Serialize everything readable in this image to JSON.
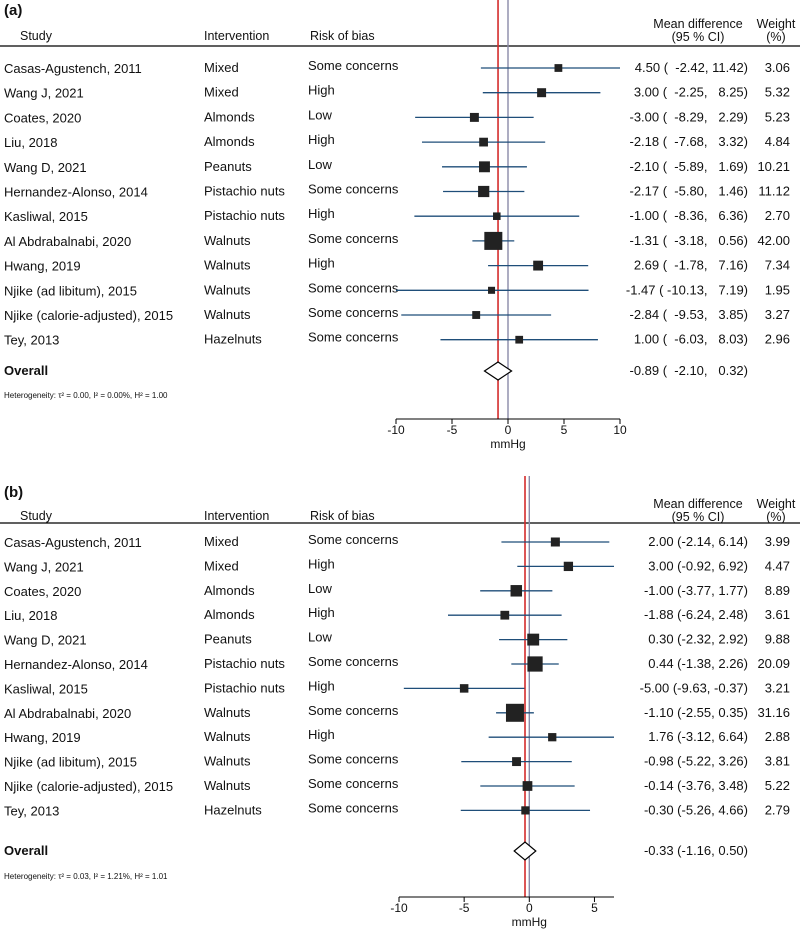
{
  "colors": {
    "ci_line": "#1f4e79",
    "marker": "#222222",
    "null_line": "#8a8aa8",
    "overall_line": "#d42b2b"
  },
  "headers": {
    "study": "Study",
    "intervention": "Intervention",
    "rob": "Risk of bias",
    "md1": "Mean difference",
    "md2": "(95 % CI)",
    "w1": "Weight",
    "w2": "(%)"
  },
  "chart_data": [
    {
      "panel": "(a)",
      "type": "forest",
      "xlabel": "mmHg",
      "xlim": [
        -10,
        10
      ],
      "xticks": [
        -10,
        -5,
        0,
        5,
        10
      ],
      "studies": [
        {
          "name": "Casas-Agustench, 2011",
          "intervention": "Mixed",
          "rob": "Some concerns",
          "md": 4.5,
          "lo": -2.42,
          "hi": 11.42,
          "weight": 3.06,
          "ci_text": "4.50 (  -2.42, 11.42)",
          "weight_text": "3.06"
        },
        {
          "name": "Wang J, 2021",
          "intervention": "Mixed",
          "rob": "High",
          "md": 3.0,
          "lo": -2.25,
          "hi": 8.25,
          "weight": 5.32,
          "ci_text": "3.00 (  -2.25,   8.25)",
          "weight_text": "5.32"
        },
        {
          "name": "Coates, 2020",
          "intervention": "Almonds",
          "rob": "Low",
          "md": -3.0,
          "lo": -8.29,
          "hi": 2.29,
          "weight": 5.23,
          "ci_text": "-3.00 (  -8.29,   2.29)",
          "weight_text": "5.23"
        },
        {
          "name": "Liu, 2018",
          "intervention": "Almonds",
          "rob": "High",
          "md": -2.18,
          "lo": -7.68,
          "hi": 3.32,
          "weight": 4.84,
          "ci_text": "-2.18 (  -7.68,   3.32)",
          "weight_text": "4.84"
        },
        {
          "name": "Wang D, 2021",
          "intervention": "Peanuts",
          "rob": "Low",
          "md": -2.1,
          "lo": -5.89,
          "hi": 1.69,
          "weight": 10.21,
          "ci_text": "-2.10 (  -5.89,   1.69)",
          "weight_text": "10.21"
        },
        {
          "name": "Hernandez-Alonso, 2014",
          "intervention": "Pistachio nuts",
          "rob": "Some concerns",
          "md": -2.17,
          "lo": -5.8,
          "hi": 1.46,
          "weight": 11.12,
          "ci_text": "-2.17 (  -5.80,   1.46)",
          "weight_text": "11.12"
        },
        {
          "name": "Kasliwal, 2015",
          "intervention": "Pistachio nuts",
          "rob": "High",
          "md": -1.0,
          "lo": -8.36,
          "hi": 6.36,
          "weight": 2.7,
          "ci_text": "-1.00 (  -8.36,   6.36)",
          "weight_text": "2.70"
        },
        {
          "name": "Al Abdrabalnabi, 2020",
          "intervention": "Walnuts",
          "rob": "Some concerns",
          "md": -1.31,
          "lo": -3.18,
          "hi": 0.56,
          "weight": 42.0,
          "ci_text": "-1.31 (  -3.18,   0.56)",
          "weight_text": "42.00"
        },
        {
          "name": "Hwang, 2019",
          "intervention": "Walnuts",
          "rob": "High",
          "md": 2.69,
          "lo": -1.78,
          "hi": 7.16,
          "weight": 7.34,
          "ci_text": "2.69 (  -1.78,   7.16)",
          "weight_text": "7.34"
        },
        {
          "name": "Njike (ad libitum), 2015",
          "intervention": "Walnuts",
          "rob": "Some concerns",
          "md": -1.47,
          "lo": -10.13,
          "hi": 7.19,
          "weight": 1.95,
          "ci_text": "-1.47 ( -10.13,   7.19)",
          "weight_text": "1.95"
        },
        {
          "name": "Njike (calorie-adjusted), 2015",
          "intervention": "Walnuts",
          "rob": "Some concerns",
          "md": -2.84,
          "lo": -9.53,
          "hi": 3.85,
          "weight": 3.27,
          "ci_text": "-2.84 (  -9.53,   3.85)",
          "weight_text": "3.27"
        },
        {
          "name": "Tey, 2013",
          "intervention": "Hazelnuts",
          "rob": "Some concerns",
          "md": 1.0,
          "lo": -6.03,
          "hi": 8.03,
          "weight": 2.96,
          "ci_text": "1.00 (  -6.03,   8.03)",
          "weight_text": "2.96"
        }
      ],
      "overall": {
        "label": "Overall",
        "md": -0.89,
        "lo": -2.1,
        "hi": 0.32,
        "ci_text": "-0.89 (  -2.10,   0.32)"
      },
      "heterogeneity": "Heterogeneity: τ² = 0.00, I² = 0.00%, H² = 1.00"
    },
    {
      "panel": "(b)",
      "type": "forest",
      "xlabel": "mmHg",
      "xlim": [
        -10,
        6.5
      ],
      "xticks": [
        -10,
        -5,
        0,
        5
      ],
      "studies": [
        {
          "name": "Casas-Agustench, 2011",
          "intervention": "Mixed",
          "rob": "Some concerns",
          "md": 2.0,
          "lo": -2.14,
          "hi": 6.14,
          "weight": 3.99,
          "ci_text": "2.00 (-2.14, 6.14)",
          "weight_text": "3.99"
        },
        {
          "name": "Wang J, 2021",
          "intervention": "Mixed",
          "rob": "High",
          "md": 3.0,
          "lo": -0.92,
          "hi": 6.92,
          "weight": 4.47,
          "ci_text": "3.00 (-0.92, 6.92)",
          "weight_text": "4.47"
        },
        {
          "name": "Coates, 2020",
          "intervention": "Almonds",
          "rob": "Low",
          "md": -1.0,
          "lo": -3.77,
          "hi": 1.77,
          "weight": 8.89,
          "ci_text": "-1.00 (-3.77, 1.77)",
          "weight_text": "8.89"
        },
        {
          "name": "Liu, 2018",
          "intervention": "Almonds",
          "rob": "High",
          "md": -1.88,
          "lo": -6.24,
          "hi": 2.48,
          "weight": 3.61,
          "ci_text": "-1.88 (-6.24, 2.48)",
          "weight_text": "3.61"
        },
        {
          "name": "Wang D, 2021",
          "intervention": "Peanuts",
          "rob": "Low",
          "md": 0.3,
          "lo": -2.32,
          "hi": 2.92,
          "weight": 9.88,
          "ci_text": "0.30 (-2.32, 2.92)",
          "weight_text": "9.88"
        },
        {
          "name": "Hernandez-Alonso, 2014",
          "intervention": "Pistachio nuts",
          "rob": "Some concerns",
          "md": 0.44,
          "lo": -1.38,
          "hi": 2.26,
          "weight": 20.09,
          "ci_text": "0.44 (-1.38, 2.26)",
          "weight_text": "20.09"
        },
        {
          "name": "Kasliwal, 2015",
          "intervention": "Pistachio nuts",
          "rob": "High",
          "md": -5.0,
          "lo": -9.63,
          "hi": -0.37,
          "weight": 3.21,
          "ci_text": "-5.00 (-9.63, -0.37)",
          "weight_text": "3.21"
        },
        {
          "name": "Al Abdrabalnabi, 2020",
          "intervention": "Walnuts",
          "rob": "Some concerns",
          "md": -1.1,
          "lo": -2.55,
          "hi": 0.35,
          "weight": 31.16,
          "ci_text": "-1.10 (-2.55, 0.35)",
          "weight_text": "31.16"
        },
        {
          "name": "Hwang, 2019",
          "intervention": "Walnuts",
          "rob": "High",
          "md": 1.76,
          "lo": -3.12,
          "hi": 6.64,
          "weight": 2.88,
          "ci_text": "1.76 (-3.12, 6.64)",
          "weight_text": "2.88"
        },
        {
          "name": "Njike (ad libitum), 2015",
          "intervention": "Walnuts",
          "rob": "Some concerns",
          "md": -0.98,
          "lo": -5.22,
          "hi": 3.26,
          "weight": 3.81,
          "ci_text": "-0.98 (-5.22, 3.26)",
          "weight_text": "3.81"
        },
        {
          "name": "Njike (calorie-adjusted), 2015",
          "intervention": "Walnuts",
          "rob": "Some concerns",
          "md": -0.14,
          "lo": -3.76,
          "hi": 3.48,
          "weight": 5.22,
          "ci_text": "-0.14 (-3.76, 3.48)",
          "weight_text": "5.22"
        },
        {
          "name": "Tey, 2013",
          "intervention": "Hazelnuts",
          "rob": "Some concerns",
          "md": -0.3,
          "lo": -5.26,
          "hi": 4.66,
          "weight": 2.79,
          "ci_text": "-0.30 (-5.26, 4.66)",
          "weight_text": "2.79"
        }
      ],
      "overall": {
        "label": "Overall",
        "md": -0.33,
        "lo": -1.16,
        "hi": 0.5,
        "ci_text": "-0.33 (-1.16, 0.50)"
      },
      "heterogeneity": "Heterogeneity: τ² = 0.03, I² = 1.21%, H² = 1.01"
    }
  ]
}
